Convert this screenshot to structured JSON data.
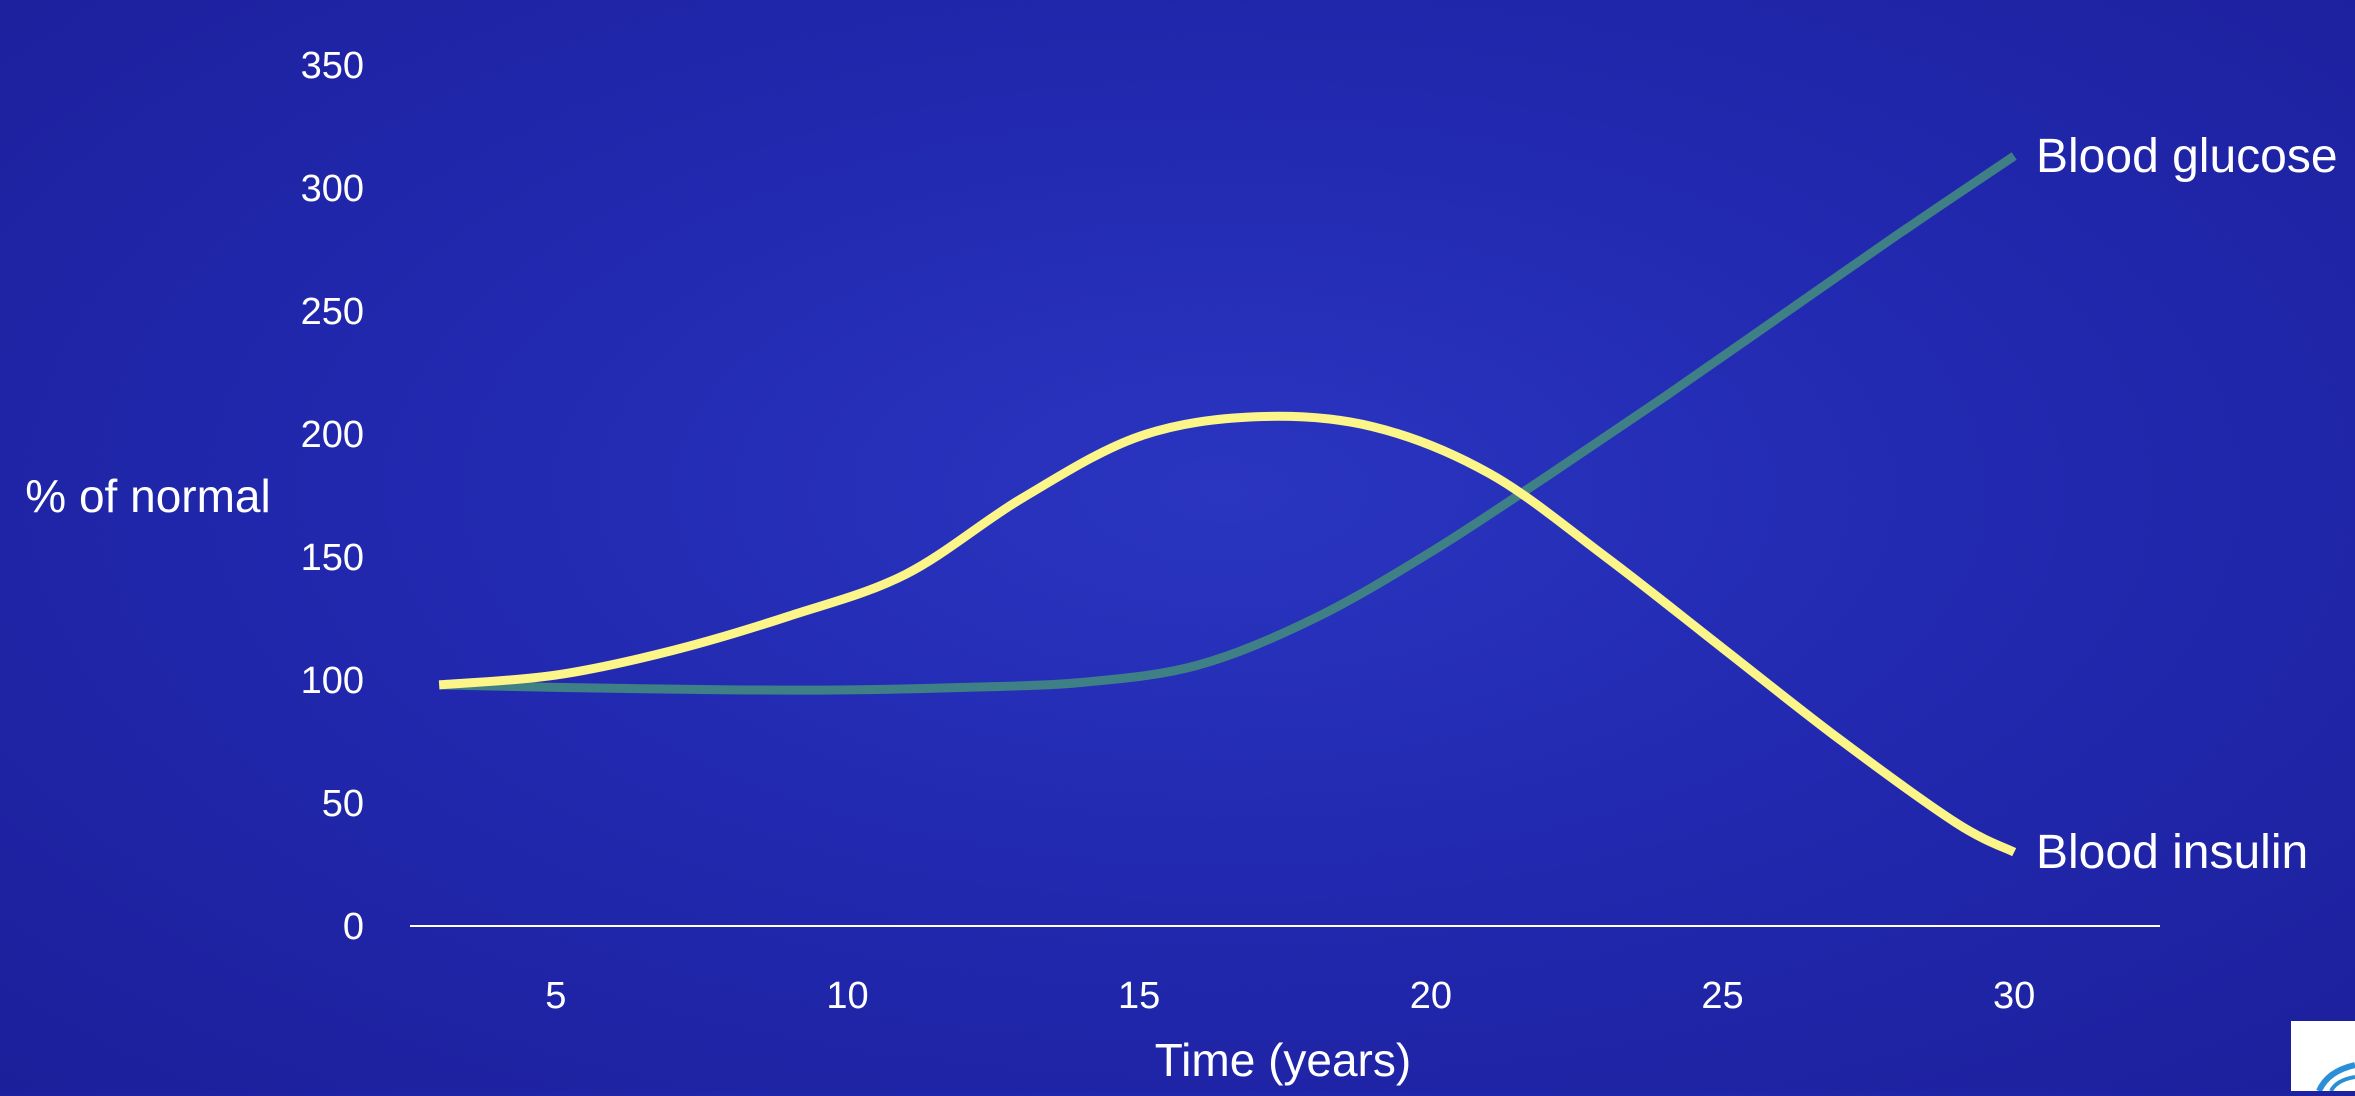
{
  "chart_data": {
    "type": "line",
    "title": "",
    "xlabel": "Time (years)",
    "ylabel": "% of normal",
    "x_ticks": [
      5,
      10,
      15,
      20,
      25,
      30
    ],
    "y_ticks": [
      0,
      50,
      100,
      150,
      200,
      250,
      300,
      350
    ],
    "xlim": [
      2.5,
      32.5
    ],
    "ylim": [
      0,
      350
    ],
    "grid": false,
    "legend": "none (series labeled at line ends, right)",
    "series": [
      {
        "name": "Blood glucose",
        "color": "#3f7f86",
        "x": [
          3,
          5,
          8,
          10,
          12,
          14,
          16,
          18,
          20,
          22,
          24,
          26,
          28,
          30
        ],
        "y": [
          98,
          97,
          96,
          96,
          97,
          99,
          106,
          125,
          152,
          183,
          215,
          248,
          281,
          313
        ]
      },
      {
        "name": "Blood insulin",
        "color": "#fbf58a",
        "x": [
          3,
          5,
          7,
          9,
          11,
          13,
          15,
          17,
          19,
          21,
          23,
          25,
          27,
          29,
          30
        ],
        "y": [
          98,
          102,
          112,
          126,
          143,
          174,
          199,
          207,
          203,
          184,
          150,
          113,
          76,
          42,
          30
        ]
      }
    ]
  }
}
